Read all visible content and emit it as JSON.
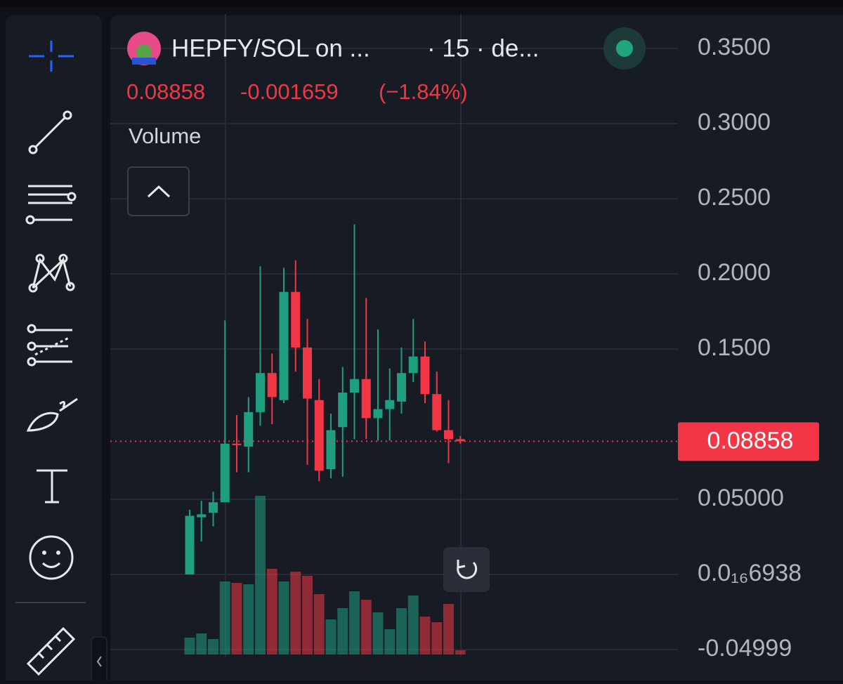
{
  "header": {
    "symbol": "HEPFY/SOL on ...",
    "interval": "· 15 · de..."
  },
  "quote": {
    "price": "0.08858",
    "change": "-0.001659",
    "change_percent": "(−1.84%)"
  },
  "indicator": "Volume",
  "price_axis": {
    "ylim": [
      -0.0547,
      0.3729
    ],
    "yticks": [
      {
        "value": 0.35,
        "label": "0.3500"
      },
      {
        "value": 0.3,
        "label": "0.3000"
      },
      {
        "value": 0.25,
        "label": "0.2500"
      },
      {
        "value": 0.2,
        "label": "0.2000"
      },
      {
        "value": 0.15,
        "label": "0.1500"
      },
      {
        "value": 0.05,
        "label": "0.05000"
      },
      {
        "value": 6.938e-17,
        "label": "0.0₁₆6938"
      },
      -0.04999
    ],
    "grid": true
  },
  "last_price": {
    "value": 0.08858,
    "label": "0.08858"
  },
  "up_color": "#1f9e80",
  "down_color": "#f23645",
  "candles": [
    {
      "open": 0.0,
      "high": 0.043,
      "low": 0.0,
      "close": 0.039,
      "volume": 24
    },
    {
      "open": 0.038,
      "high": 0.049,
      "low": 0.022,
      "close": 0.04,
      "volume": 30
    },
    {
      "open": 0.041,
      "high": 0.055,
      "low": 0.032,
      "close": 0.048,
      "volume": 22
    },
    {
      "open": 0.048,
      "high": 0.169,
      "low": 0.048,
      "close": 0.087,
      "volume": 104
    },
    {
      "open": 0.087,
      "high": 0.106,
      "low": 0.068,
      "close": 0.086,
      "volume": 102
    },
    {
      "open": 0.085,
      "high": 0.118,
      "low": 0.068,
      "close": 0.108,
      "volume": 100
    },
    {
      "open": 0.108,
      "high": 0.205,
      "low": 0.099,
      "close": 0.134,
      "volume": 226
    },
    {
      "open": 0.134,
      "high": 0.147,
      "low": 0.1,
      "close": 0.118,
      "volume": 122
    },
    {
      "open": 0.116,
      "high": 0.204,
      "low": 0.114,
      "close": 0.188,
      "volume": 104
    },
    {
      "open": 0.188,
      "high": 0.209,
      "low": 0.135,
      "close": 0.151,
      "volume": 118
    },
    {
      "open": 0.151,
      "high": 0.17,
      "low": 0.073,
      "close": 0.117,
      "volume": 112
    },
    {
      "open": 0.116,
      "high": 0.13,
      "low": 0.062,
      "close": 0.069,
      "volume": 86
    },
    {
      "open": 0.07,
      "high": 0.107,
      "low": 0.064,
      "close": 0.096,
      "volume": 50
    },
    {
      "open": 0.098,
      "high": 0.138,
      "low": 0.065,
      "close": 0.121,
      "volume": 66
    },
    {
      "open": 0.121,
      "high": 0.233,
      "low": 0.09,
      "close": 0.13,
      "volume": 90
    },
    {
      "open": 0.13,
      "high": 0.184,
      "low": 0.09,
      "close": 0.104,
      "volume": 78
    },
    {
      "open": 0.104,
      "high": 0.163,
      "low": 0.089,
      "close": 0.11,
      "volume": 60
    },
    {
      "open": 0.11,
      "high": 0.137,
      "low": 0.089,
      "close": 0.116,
      "volume": 36
    },
    {
      "open": 0.115,
      "high": 0.151,
      "low": 0.107,
      "close": 0.134,
      "volume": 66
    },
    {
      "open": 0.134,
      "high": 0.17,
      "low": 0.128,
      "close": 0.145,
      "volume": 84
    },
    {
      "open": 0.145,
      "high": 0.155,
      "low": 0.114,
      "close": 0.12,
      "volume": 54
    },
    {
      "open": 0.12,
      "high": 0.135,
      "low": 0.095,
      "close": 0.096,
      "volume": 46
    },
    {
      "open": 0.096,
      "high": 0.116,
      "low": 0.074,
      "close": 0.09,
      "volume": 72
    },
    {
      "open": 0.09,
      "high": 0.092,
      "low": 0.087,
      "close": 0.08858,
      "volume": 6
    }
  ]
}
